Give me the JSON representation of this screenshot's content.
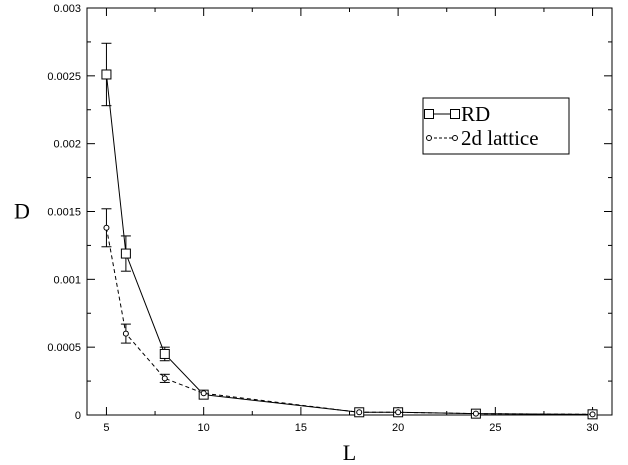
{
  "chart_data": {
    "type": "line",
    "title": "",
    "xlabel": "L",
    "ylabel": "D",
    "xlim": [
      4,
      31
    ],
    "ylim": [
      0,
      0.003
    ],
    "xticks": [
      5,
      10,
      15,
      20,
      25,
      30
    ],
    "yticks": [
      0,
      0.0005,
      0.001,
      0.0015,
      0.002,
      0.0025,
      0.003
    ],
    "xtick_labels": [
      "5",
      "10",
      "15",
      "20",
      "25",
      "30"
    ],
    "ytick_labels": [
      "0",
      "0.0005",
      "0.001",
      "0.0015",
      "0.002",
      "0.0025",
      "0.003"
    ],
    "grid": false,
    "legend_position": "top-right",
    "series": [
      {
        "name": "RD",
        "marker": "square",
        "line_style": "solid",
        "color": "#000000",
        "x": [
          5,
          6,
          8,
          10,
          18,
          20,
          24,
          30
        ],
        "y": [
          0.00251,
          0.00119,
          0.00045,
          0.00015,
          2e-05,
          2e-05,
          1e-05,
          5e-06
        ],
        "error": [
          0.00023,
          0.00013,
          5e-05,
          1e-05,
          5e-06,
          5e-06,
          3e-06,
          3e-06
        ]
      },
      {
        "name": "2d lattice",
        "marker": "circle",
        "line_style": "dashed",
        "color": "#000000",
        "x": [
          5,
          6,
          8,
          10,
          18,
          20,
          24,
          30
        ],
        "y": [
          0.00138,
          0.0006,
          0.00027,
          0.00016,
          2e-05,
          2e-05,
          1e-05,
          5e-06
        ],
        "error": [
          0.00014,
          7e-05,
          3e-05,
          1e-05,
          5e-06,
          5e-06,
          3e-06,
          3e-06
        ]
      }
    ]
  }
}
